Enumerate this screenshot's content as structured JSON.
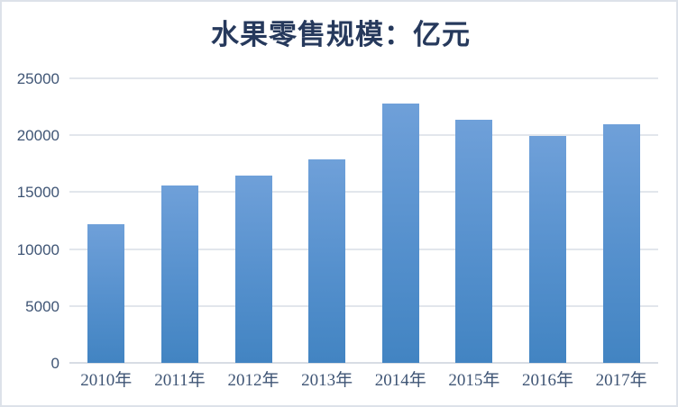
{
  "chart_data": {
    "type": "bar",
    "title": "水果零售规模：亿元",
    "categories": [
      "2010年",
      "2011年",
      "2012年",
      "2013年",
      "2014年",
      "2015年",
      "2016年",
      "2017年"
    ],
    "values": [
      12200,
      15600,
      16480,
      17900,
      22760,
      21400,
      19950,
      21000
    ],
    "xlabel": "",
    "ylabel": "",
    "ylim": [
      0,
      25000
    ],
    "yticks": [
      0,
      5000,
      10000,
      15000,
      20000,
      25000
    ],
    "grid": true,
    "legend_position": "none",
    "colors": {
      "bar_gradient_top": "#6fa0d9",
      "bar_gradient_bottom": "#4284c2",
      "gridline": "#e2e6ec",
      "axis_line": "#d8dde4",
      "title_text": "#26395c",
      "axis_text": "#3f5575",
      "frame_border": "#dde2e9",
      "background": "#ffffff"
    }
  }
}
